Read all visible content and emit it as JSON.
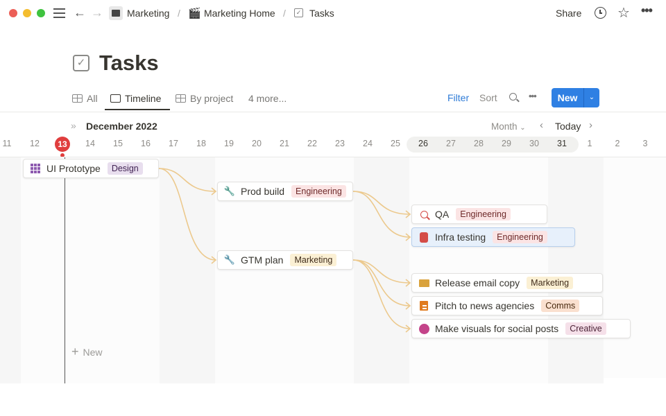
{
  "topbar": {
    "breadcrumbs": [
      {
        "label": "Marketing",
        "icon": "clapper-icon"
      },
      {
        "label": "Marketing Home",
        "icon": "clapper-icon"
      },
      {
        "label": "Tasks",
        "icon": "checkbox-icon"
      }
    ],
    "separator": "/",
    "share": "Share"
  },
  "page": {
    "title": "Tasks"
  },
  "views": {
    "tabs": [
      "All",
      "Timeline",
      "By project",
      "4 more..."
    ],
    "active": "Timeline",
    "filter": "Filter",
    "sort": "Sort",
    "new": "New"
  },
  "timeline": {
    "month": "December 2022",
    "scale": "Month",
    "today_label": "Today",
    "today": "13",
    "days": [
      "11",
      "12",
      "13",
      "14",
      "15",
      "16",
      "17",
      "18",
      "19",
      "20",
      "21",
      "22",
      "23",
      "24",
      "25",
      "26",
      "27",
      "28",
      "29",
      "30",
      "31",
      "1",
      "2",
      "3"
    ],
    "new_label": "New",
    "accent": "#e03e3e"
  },
  "tasks": [
    {
      "name": "UI Prototype",
      "tag": "Design",
      "icon": "grid-icon",
      "tag_bg": "#e8deee",
      "tag_fg": "#412454"
    },
    {
      "name": "Prod build",
      "tag": "Engineering",
      "icon": "wrench-icon",
      "tag_bg": "#fbe4e4",
      "tag_fg": "#6e2a2a"
    },
    {
      "name": "GTM plan",
      "tag": "Marketing",
      "icon": "wrench-icon",
      "tag_bg": "#fbf0d4",
      "tag_fg": "#402c1b"
    },
    {
      "name": "QA",
      "tag": "Engineering",
      "icon": "search-icon",
      "tag_bg": "#fbe4e4",
      "tag_fg": "#6e2a2a"
    },
    {
      "name": "Infra testing",
      "tag": "Engineering",
      "icon": "jar-icon",
      "tag_bg": "#fbe4e4",
      "tag_fg": "#6e2a2a"
    },
    {
      "name": "Release email copy",
      "tag": "Marketing",
      "icon": "envelope-icon",
      "tag_bg": "#fbf0d4",
      "tag_fg": "#402c1b"
    },
    {
      "name": "Pitch to news agencies",
      "tag": "Comms",
      "icon": "newspaper-icon",
      "tag_bg": "#fae0cf",
      "tag_fg": "#49290e"
    },
    {
      "name": "Make visuals for social posts",
      "tag": "Creative",
      "icon": "palette-icon",
      "tag_bg": "#f5e0e9",
      "tag_fg": "#4c2337"
    }
  ]
}
